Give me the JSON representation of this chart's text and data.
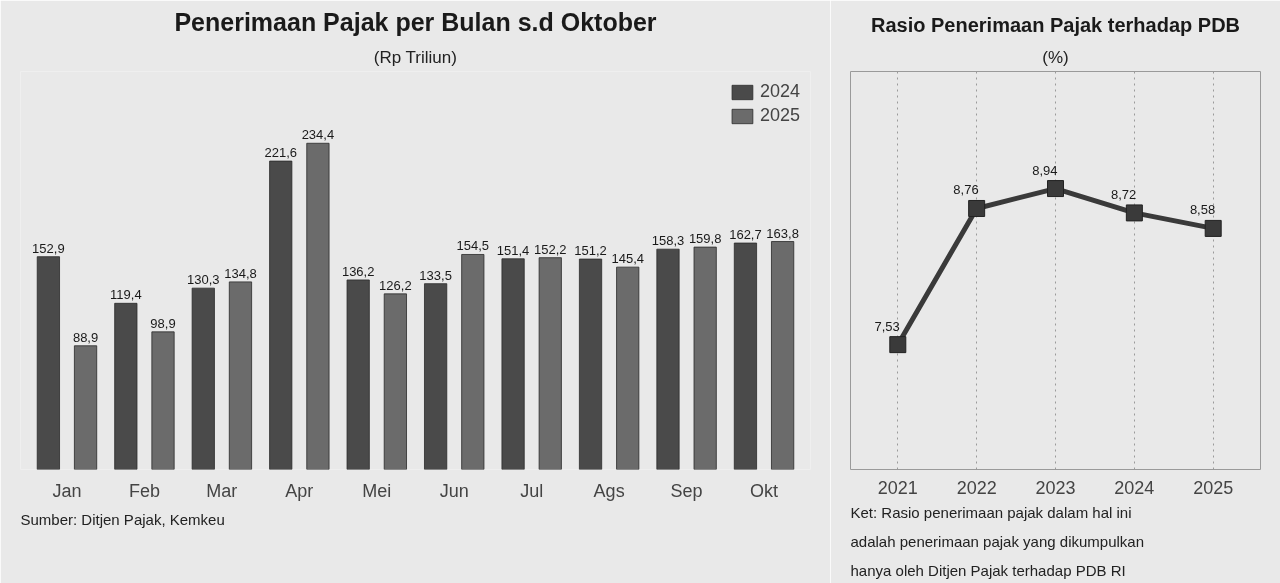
{
  "chart_data": [
    {
      "type": "bar",
      "title": "Penerimaan Pajak per Bulan s.d Oktober",
      "subtitle": "(Rp Triliun)",
      "categories": [
        "Jan",
        "Feb",
        "Mar",
        "Apr",
        "Mei",
        "Jun",
        "Jul",
        "Ags",
        "Sep",
        "Okt"
      ],
      "series": [
        {
          "name": "2024",
          "color": "#4a4a4a",
          "values": [
            152.9,
            119.4,
            130.3,
            221.6,
            136.2,
            133.5,
            151.4,
            151.2,
            158.3,
            162.7
          ],
          "value_labels": [
            "152,9",
            "119,4",
            "130,3",
            "221,6",
            "136,2",
            "133,5",
            "151,4",
            "151,2",
            "158,3",
            "162,7"
          ]
        },
        {
          "name": "2025",
          "color": "#6b6b6b",
          "values": [
            88.9,
            98.9,
            134.8,
            234.4,
            126.2,
            154.5,
            152.2,
            145.4,
            159.8,
            163.8
          ],
          "value_labels": [
            "88,9",
            "98,9",
            "134,8",
            "234,4",
            "126,2",
            "154,5",
            "152,2",
            "145,4",
            "159,8",
            "163,8"
          ]
        }
      ],
      "legend": "top right",
      "tick_labels": "x",
      "grid": false,
      "annotations": [
        "Sumber: Ditjen Pajak, Kemkeu"
      ]
    },
    {
      "type": "line",
      "title": "Rasio Penerimaan Pajak terhadap PDB",
      "subtitle": "(%)",
      "categories": [
        "2021",
        "2022",
        "2023",
        "2024",
        "2025"
      ],
      "series": [
        {
          "color": "#3a3a3a",
          "values": [
            7.53,
            8.76,
            8.94,
            8.72,
            8.58
          ],
          "value_labels": [
            "7,53",
            "8,76",
            "8,94",
            "8,72",
            "8,58"
          ]
        }
      ],
      "marker": "square",
      "line_style": "solid",
      "grid": "x",
      "legend": false,
      "tick_labels": "x",
      "annotations": [
        "Ket: Rasio penerimaan pajak dalam hal ini adalah penerimaan pajak yang dikumpulkan hanya oleh Ditjen Pajak terhadap PDB RI"
      ]
    }
  ]
}
